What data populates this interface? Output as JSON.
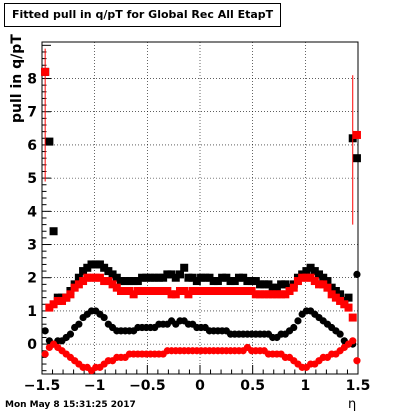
{
  "chart_data": {
    "type": "scatter",
    "title": "Fitted pull in q/pT for Global Rec All EtapT",
    "xlabel": "η",
    "ylabel": "pull in q/pT",
    "xlim": [
      -1.5,
      1.5
    ],
    "ylim": [
      -0.9,
      9.1
    ],
    "xticks": [
      "−1.5",
      "−1",
      "−0.5",
      "0",
      "0.5",
      "1",
      "1.5"
    ],
    "yticks": [
      "0",
      "1",
      "2",
      "3",
      "4",
      "5",
      "6",
      "7",
      "8"
    ],
    "grid": true,
    "colors": {
      "black": "#000000",
      "red": "#ff0000"
    },
    "series": [
      {
        "marker": "square",
        "color": "#000000",
        "x": [
          -1.47,
          -1.43,
          -1.39,
          -1.35,
          -1.31,
          -1.27,
          -1.23,
          -1.19,
          -1.15,
          -1.11,
          -1.07,
          -1.03,
          -0.99,
          -0.95,
          -0.91,
          -0.87,
          -0.83,
          -0.79,
          -0.75,
          -0.71,
          -0.67,
          -0.63,
          -0.59,
          -0.55,
          -0.51,
          -0.47,
          -0.43,
          -0.39,
          -0.35,
          -0.31,
          -0.27,
          -0.23,
          -0.19,
          -0.15,
          -0.11,
          -0.07,
          -0.03,
          0.01,
          0.05,
          0.09,
          0.13,
          0.17,
          0.21,
          0.25,
          0.29,
          0.33,
          0.37,
          0.41,
          0.45,
          0.49,
          0.53,
          0.57,
          0.61,
          0.65,
          0.69,
          0.73,
          0.77,
          0.81,
          0.85,
          0.89,
          0.93,
          0.97,
          1.01,
          1.05,
          1.09,
          1.13,
          1.17,
          1.21,
          1.25,
          1.29,
          1.33,
          1.37,
          1.41,
          1.45,
          1.49
        ],
        "y": [
          8.2,
          6.1,
          3.4,
          1.4,
          1.4,
          1.4,
          1.6,
          1.8,
          2.0,
          2.2,
          2.3,
          2.4,
          2.4,
          2.4,
          2.3,
          2.2,
          2.1,
          2.0,
          1.9,
          1.9,
          1.9,
          1.9,
          1.9,
          2.0,
          2.0,
          2.0,
          2.0,
          2.0,
          2.0,
          2.1,
          2.1,
          2.0,
          2.1,
          2.3,
          2.0,
          2.0,
          1.9,
          2.0,
          2.0,
          2.0,
          1.9,
          1.9,
          2.0,
          2.0,
          1.9,
          1.9,
          2.0,
          2.0,
          1.9,
          1.9,
          1.9,
          1.8,
          1.8,
          1.8,
          1.7,
          1.7,
          1.8,
          1.8,
          1.7,
          1.8,
          2.0,
          2.1,
          2.2,
          2.3,
          2.2,
          2.1,
          2.0,
          1.9,
          1.7,
          1.6,
          1.5,
          1.3,
          1.4,
          6.2,
          5.6
        ]
      },
      {
        "marker": "square",
        "color": "#ff0000",
        "x": [
          -1.47,
          -1.43,
          -1.39,
          -1.35,
          -1.31,
          -1.27,
          -1.23,
          -1.19,
          -1.15,
          -1.11,
          -1.07,
          -1.03,
          -0.99,
          -0.95,
          -0.91,
          -0.87,
          -0.83,
          -0.79,
          -0.75,
          -0.71,
          -0.67,
          -0.63,
          -0.59,
          -0.55,
          -0.51,
          -0.47,
          -0.43,
          -0.39,
          -0.35,
          -0.31,
          -0.27,
          -0.23,
          -0.19,
          -0.15,
          -0.11,
          -0.07,
          -0.03,
          0.01,
          0.05,
          0.09,
          0.13,
          0.17,
          0.21,
          0.25,
          0.29,
          0.33,
          0.37,
          0.41,
          0.45,
          0.49,
          0.53,
          0.57,
          0.61,
          0.65,
          0.69,
          0.73,
          0.77,
          0.81,
          0.85,
          0.89,
          0.93,
          0.97,
          1.01,
          1.05,
          1.09,
          1.13,
          1.17,
          1.21,
          1.25,
          1.29,
          1.33,
          1.37,
          1.41,
          1.45,
          1.49
        ],
        "y": [
          8.2,
          1.1,
          1.2,
          1.3,
          1.3,
          1.4,
          1.5,
          1.7,
          1.8,
          1.9,
          2.0,
          2.0,
          2.0,
          2.0,
          1.9,
          1.9,
          1.8,
          1.7,
          1.6,
          1.6,
          1.6,
          1.5,
          1.6,
          1.6,
          1.6,
          1.6,
          1.6,
          1.6,
          1.6,
          1.6,
          1.5,
          1.5,
          1.6,
          1.6,
          1.5,
          1.6,
          1.6,
          1.6,
          1.6,
          1.6,
          1.6,
          1.6,
          1.6,
          1.6,
          1.6,
          1.6,
          1.6,
          1.6,
          1.6,
          1.6,
          1.5,
          1.5,
          1.5,
          1.5,
          1.5,
          1.5,
          1.5,
          1.5,
          1.6,
          1.7,
          1.9,
          2.0,
          2.0,
          2.0,
          1.9,
          1.8,
          1.8,
          1.7,
          1.5,
          1.4,
          1.3,
          1.2,
          1.1,
          0.8,
          6.3
        ]
      },
      {
        "marker": "circle",
        "color": "#000000",
        "x": [
          -1.47,
          -1.43,
          -1.39,
          -1.35,
          -1.31,
          -1.27,
          -1.23,
          -1.19,
          -1.15,
          -1.11,
          -1.07,
          -1.03,
          -0.99,
          -0.95,
          -0.91,
          -0.87,
          -0.83,
          -0.79,
          -0.75,
          -0.71,
          -0.67,
          -0.63,
          -0.59,
          -0.55,
          -0.51,
          -0.47,
          -0.43,
          -0.39,
          -0.35,
          -0.31,
          -0.27,
          -0.23,
          -0.19,
          -0.15,
          -0.11,
          -0.07,
          -0.03,
          0.01,
          0.05,
          0.09,
          0.13,
          0.17,
          0.21,
          0.25,
          0.29,
          0.33,
          0.37,
          0.41,
          0.45,
          0.49,
          0.53,
          0.57,
          0.61,
          0.65,
          0.69,
          0.73,
          0.77,
          0.81,
          0.85,
          0.89,
          0.93,
          0.97,
          1.01,
          1.05,
          1.09,
          1.13,
          1.17,
          1.21,
          1.25,
          1.29,
          1.33,
          1.37,
          1.41,
          1.45,
          1.49
        ],
        "y": [
          0.4,
          0.1,
          0.0,
          0.1,
          0.1,
          0.2,
          0.3,
          0.5,
          0.6,
          0.8,
          0.9,
          1.0,
          1.0,
          0.9,
          0.8,
          0.6,
          0.5,
          0.4,
          0.4,
          0.4,
          0.4,
          0.4,
          0.5,
          0.5,
          0.5,
          0.5,
          0.5,
          0.6,
          0.6,
          0.6,
          0.7,
          0.6,
          0.7,
          0.7,
          0.6,
          0.6,
          0.5,
          0.5,
          0.5,
          0.4,
          0.4,
          0.4,
          0.4,
          0.4,
          0.3,
          0.3,
          0.3,
          0.3,
          0.3,
          0.3,
          0.3,
          0.3,
          0.3,
          0.3,
          0.2,
          0.2,
          0.3,
          0.3,
          0.4,
          0.5,
          0.7,
          0.9,
          1.0,
          1.0,
          0.9,
          0.8,
          0.7,
          0.6,
          0.5,
          0.4,
          0.3,
          0.1,
          0.0,
          0.0,
          2.1
        ]
      },
      {
        "marker": "circle",
        "color": "#ff0000",
        "x": [
          -1.47,
          -1.43,
          -1.39,
          -1.35,
          -1.31,
          -1.27,
          -1.23,
          -1.19,
          -1.15,
          -1.11,
          -1.07,
          -1.03,
          -0.99,
          -0.95,
          -0.91,
          -0.87,
          -0.83,
          -0.79,
          -0.75,
          -0.71,
          -0.67,
          -0.63,
          -0.59,
          -0.55,
          -0.51,
          -0.47,
          -0.43,
          -0.39,
          -0.35,
          -0.31,
          -0.27,
          -0.23,
          -0.19,
          -0.15,
          -0.11,
          -0.07,
          -0.03,
          0.01,
          0.05,
          0.09,
          0.13,
          0.17,
          0.21,
          0.25,
          0.29,
          0.33,
          0.37,
          0.41,
          0.45,
          0.49,
          0.53,
          0.57,
          0.61,
          0.65,
          0.69,
          0.73,
          0.77,
          0.81,
          0.85,
          0.89,
          0.93,
          0.97,
          1.01,
          1.05,
          1.09,
          1.13,
          1.17,
          1.21,
          1.25,
          1.29,
          1.33,
          1.37,
          1.41,
          1.45,
          1.49
        ],
        "y": [
          -0.3,
          -0.1,
          0.0,
          -0.1,
          -0.2,
          -0.3,
          -0.4,
          -0.5,
          -0.6,
          -0.7,
          -0.7,
          -0.8,
          -0.7,
          -0.7,
          -0.6,
          -0.5,
          -0.5,
          -0.4,
          -0.4,
          -0.4,
          -0.3,
          -0.3,
          -0.3,
          -0.3,
          -0.3,
          -0.3,
          -0.3,
          -0.3,
          -0.3,
          -0.2,
          -0.2,
          -0.2,
          -0.2,
          -0.2,
          -0.2,
          -0.2,
          -0.2,
          -0.2,
          -0.2,
          -0.2,
          -0.2,
          -0.2,
          -0.2,
          -0.2,
          -0.2,
          -0.2,
          -0.2,
          -0.2,
          -0.1,
          -0.2,
          -0.2,
          -0.2,
          -0.2,
          -0.3,
          -0.3,
          -0.3,
          -0.3,
          -0.4,
          -0.4,
          -0.5,
          -0.6,
          -0.7,
          -0.7,
          -0.6,
          -0.6,
          -0.5,
          -0.4,
          -0.4,
          -0.3,
          -0.3,
          -0.2,
          -0.1,
          0.0,
          0.1,
          -0.5
        ]
      }
    ]
  },
  "footer": {
    "timestamp": "Mon May  8 15:31:25 2017"
  }
}
